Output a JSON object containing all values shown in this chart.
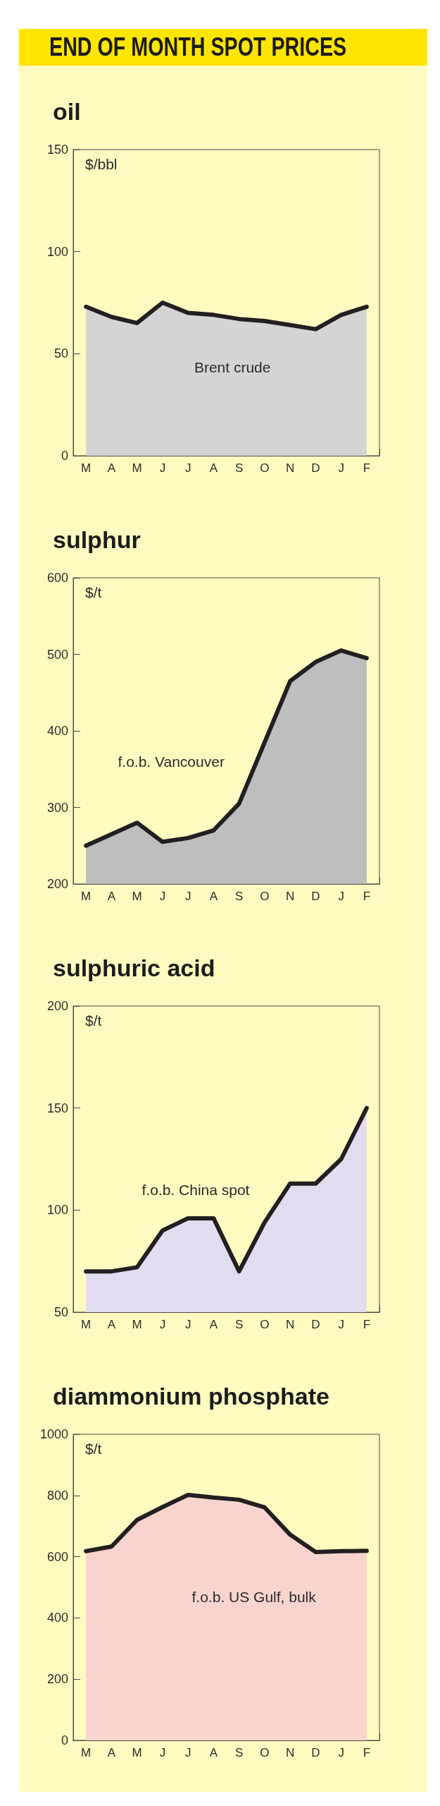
{
  "chart_data": [
    {
      "type": "other",
      "title": "END OF MONTH SPOT PRICES"
    },
    {
      "type": "area",
      "title": "oil",
      "ylabel": "$/bbl",
      "categories": [
        "M",
        "A",
        "M",
        "J",
        "J",
        "A",
        "S",
        "O",
        "N",
        "D",
        "J",
        "F"
      ],
      "series": [
        {
          "name": "Brent crude",
          "color": "#d4d4d4",
          "values": [
            73,
            68,
            65,
            75,
            70,
            69,
            67,
            66,
            64,
            62,
            69,
            73
          ]
        }
      ],
      "ylim": [
        0,
        150
      ],
      "yticks": [
        0,
        50,
        100,
        150
      ]
    },
    {
      "type": "area",
      "title": "sulphur",
      "ylabel": "$/t",
      "categories": [
        "M",
        "A",
        "M",
        "J",
        "J",
        "A",
        "S",
        "O",
        "N",
        "D",
        "J",
        "F"
      ],
      "series": [
        {
          "name": "f.o.b. Vancouver",
          "color": "#bebebe",
          "values": [
            250,
            265,
            280,
            255,
            260,
            270,
            305,
            385,
            465,
            490,
            505,
            495
          ]
        }
      ],
      "ylim": [
        200,
        600
      ],
      "yticks": [
        200,
        300,
        400,
        500,
        600
      ]
    },
    {
      "type": "area",
      "title": "sulphuric acid",
      "ylabel": "$/t",
      "categories": [
        "M",
        "A",
        "M",
        "J",
        "J",
        "A",
        "S",
        "O",
        "N",
        "D",
        "J",
        "F"
      ],
      "series": [
        {
          "name": "f.o.b. China spot",
          "color": "#e3dcf0",
          "values": [
            70,
            70,
            72,
            90,
            96,
            96,
            70,
            94,
            113,
            113,
            125,
            150
          ]
        }
      ],
      "ylim": [
        50,
        200
      ],
      "yticks": [
        50,
        100,
        150,
        200
      ]
    },
    {
      "type": "area",
      "title": "diammonium phosphate",
      "ylabel": "$/t",
      "categories": [
        "M",
        "A",
        "M",
        "J",
        "J",
        "A",
        "S",
        "O",
        "N",
        "D",
        "J",
        "F"
      ],
      "series": [
        {
          "name": "f.o.b. US Gulf, bulk",
          "color": "#f9d4cf",
          "values": [
            618,
            633,
            720,
            762,
            802,
            793,
            786,
            761,
            672,
            615,
            618,
            619
          ]
        }
      ],
      "ylim": [
        0,
        1000
      ],
      "yticks": [
        0,
        200,
        400,
        600,
        800,
        1000
      ]
    }
  ]
}
